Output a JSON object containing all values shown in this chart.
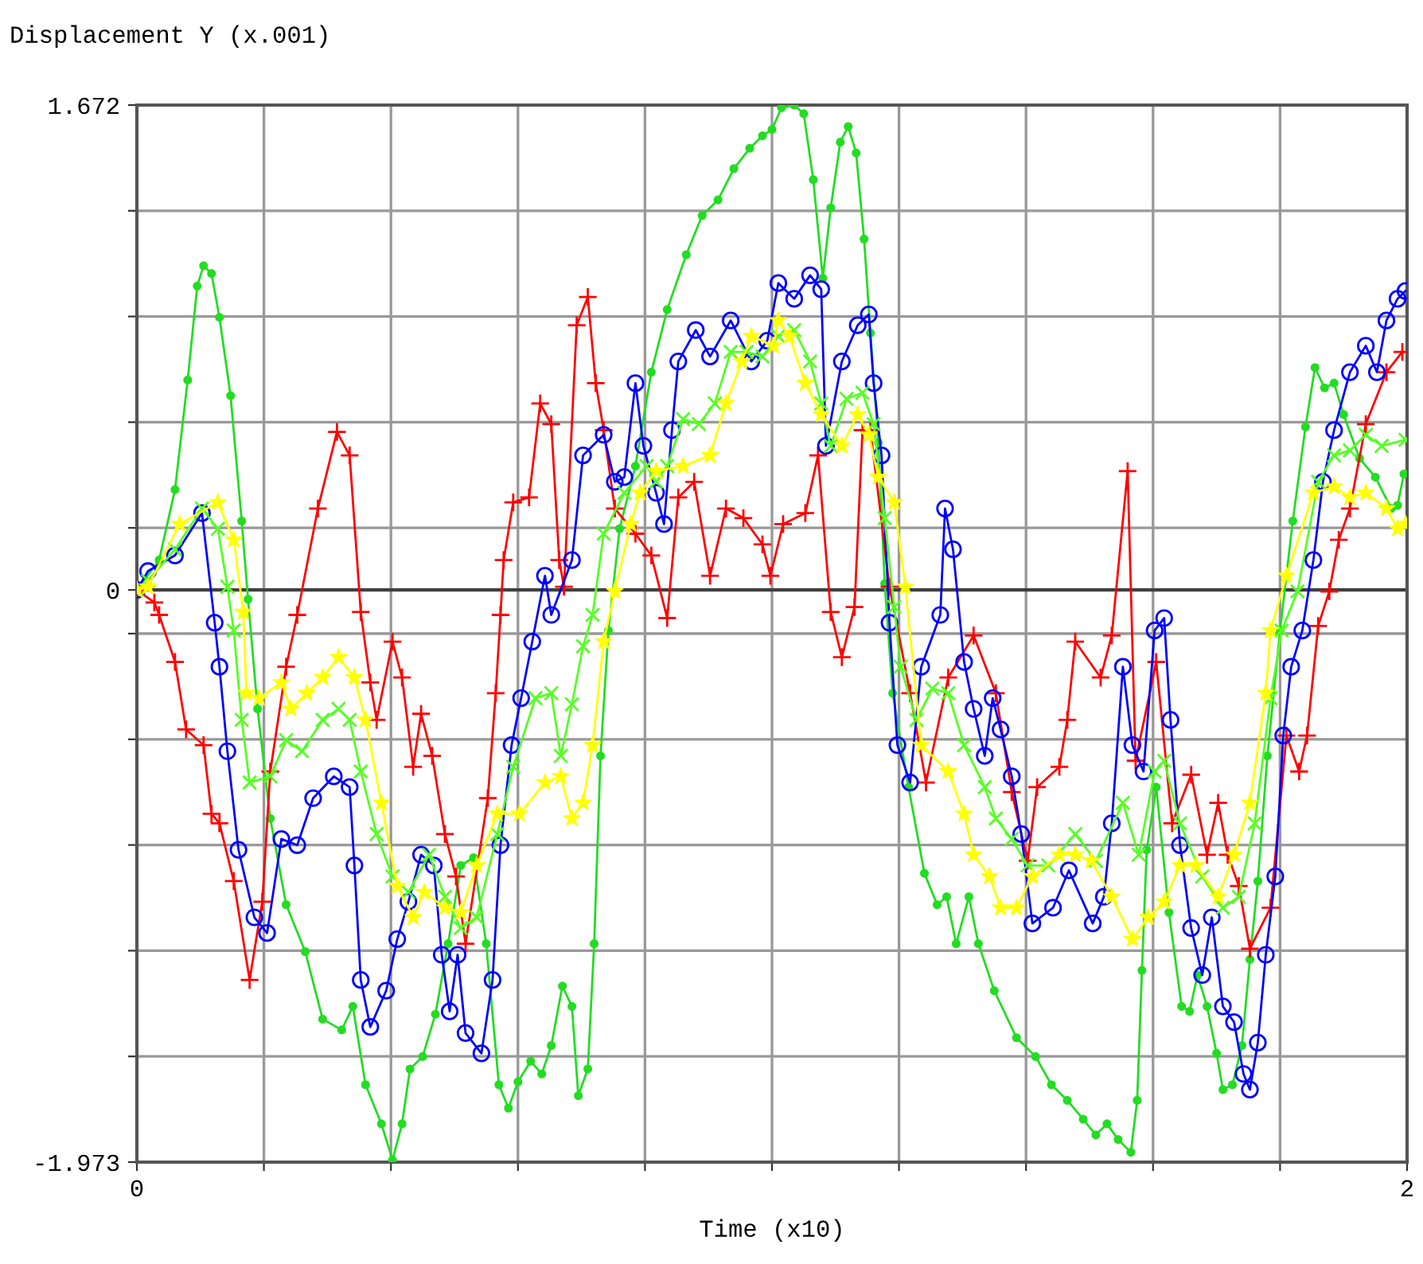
{
  "chart_data": {
    "type": "line",
    "ylabel": "Displacement Y (x.001)",
    "xlabel": "Time (x10)",
    "xlim": [
      0,
      2
    ],
    "ylim": [
      -1.973,
      1.672
    ],
    "xticks": [
      0,
      {
        "value": 0.2,
        "label": null
      },
      {
        "value": 0.4,
        "label": null
      },
      {
        "value": 0.6,
        "label": null
      },
      {
        "value": 0.8,
        "label": null
      },
      {
        "value": 1.0,
        "label": null
      },
      {
        "value": 1.2,
        "label": null
      },
      {
        "value": 1.4,
        "label": null
      },
      {
        "value": 1.6,
        "label": null
      },
      {
        "value": 1.8,
        "label": null
      },
      2
    ],
    "yticks": [
      -1.973,
      {
        "value": -1.6085,
        "label": null
      },
      {
        "value": -1.244,
        "label": null
      },
      {
        "value": -0.8795,
        "label": null
      },
      {
        "value": -0.515,
        "label": null
      },
      {
        "value": -0.1505,
        "label": null
      },
      0,
      {
        "value": 0.214,
        "label": null
      },
      {
        "value": 0.5785,
        "label": null
      },
      {
        "value": 0.943,
        "label": null
      },
      {
        "value": 1.3075,
        "label": null
      },
      1.672
    ],
    "grid": true,
    "line_style": "solid",
    "ref_lines": [
      {
        "axis": "y",
        "value": 0,
        "color": "#404040"
      }
    ],
    "series": [
      {
        "color": "#22dd22",
        "marker": "circle",
        "x": [
          0,
          0.035,
          0.06,
          0.08,
          0.095,
          0.105,
          0.1175,
          0.13,
          0.1475,
          0.165,
          0.175,
          0.19,
          0.21,
          0.235,
          0.265,
          0.2925,
          0.3225,
          0.34,
          0.36,
          0.385,
          0.4025,
          0.4175,
          0.43,
          0.45,
          0.47,
          0.49,
          0.51,
          0.53,
          0.55,
          0.57,
          0.585,
          0.6,
          0.62,
          0.6375,
          0.6525,
          0.67,
          0.685,
          0.695,
          0.71,
          0.72,
          0.73,
          0.7425,
          0.76,
          0.785,
          0.81,
          0.835,
          0.865,
          0.89,
          0.915,
          0.94,
          0.965,
          0.985,
          1.0,
          1.015,
          1.035,
          1.05,
          1.065,
          1.08,
          1.0925,
          1.1075,
          1.12,
          1.1325,
          1.145,
          1.155,
          1.1675,
          1.1775,
          1.19,
          1.215,
          1.24,
          1.26,
          1.275,
          1.29,
          1.31,
          1.325,
          1.35,
          1.385,
          1.415,
          1.44,
          1.465,
          1.49,
          1.51,
          1.5275,
          1.545,
          1.565,
          1.575,
          1.5825,
          1.59,
          1.605,
          1.625,
          1.645,
          1.6575,
          1.67,
          1.685,
          1.7,
          1.71,
          1.725,
          1.74,
          1.7525,
          1.765,
          1.78,
          1.8,
          1.82,
          1.84,
          1.855,
          1.87,
          1.885,
          1.9,
          1.925,
          1.95,
          1.975,
          1.985,
          1.995
        ],
        "values": [
          0,
          0.103,
          0.346,
          0.724,
          1.048,
          1.118,
          1.091,
          0.94,
          0.67,
          0.238,
          -0.032,
          -0.41,
          -0.788,
          -1.085,
          -1.247,
          -1.48,
          -1.517,
          -1.436,
          -1.706,
          -1.841,
          -1.966,
          -1.841,
          -1.652,
          -1.609,
          -1.463,
          -1.22,
          -0.95,
          -0.923,
          -1.22,
          -1.706,
          -1.787,
          -1.696,
          -1.625,
          -1.669,
          -1.571,
          -1.366,
          -1.436,
          -1.744,
          -1.652,
          -1.22,
          -0.572,
          -0.14,
          0.211,
          0.427,
          0.751,
          0.967,
          1.156,
          1.291,
          1.345,
          1.453,
          1.523,
          1.566,
          1.588,
          1.663,
          1.672,
          1.642,
          1.415,
          1.075,
          1.318,
          1.544,
          1.598,
          1.507,
          1.21,
          0.886,
          0.508,
          0.022,
          -0.356,
          -0.68,
          -0.977,
          -1.085,
          -1.058,
          -1.22,
          -1.058,
          -1.22,
          -1.382,
          -1.544,
          -1.609,
          -1.706,
          -1.76,
          -1.825,
          -1.879,
          -1.841,
          -1.895,
          -1.939,
          -1.76,
          -1.312,
          -0.896,
          -0.68,
          -1.112,
          -1.436,
          -1.453,
          -1.328,
          -1.436,
          -1.598,
          -1.723,
          -1.706,
          -1.571,
          -1.274,
          -1.004,
          -0.572,
          -0.14,
          0.238,
          0.562,
          0.767,
          0.697,
          0.713,
          0.605,
          0.454,
          0.389,
          0.281,
          0.292,
          0.4
        ]
      },
      {
        "color": "#ff0000",
        "marker": "cross",
        "x": [
          0,
          0.0275,
          0.035,
          0.06,
          0.0775,
          0.105,
          0.1175,
          0.13,
          0.1525,
          0.1775,
          0.1975,
          0.21,
          0.235,
          0.2525,
          0.285,
          0.315,
          0.335,
          0.3525,
          0.3675,
          0.3775,
          0.4025,
          0.4175,
          0.435,
          0.4475,
          0.465,
          0.485,
          0.5025,
          0.5175,
          0.5525,
          0.565,
          0.5725,
          0.5775,
          0.5925,
          0.6175,
          0.635,
          0.6525,
          0.665,
          0.6725,
          0.6925,
          0.71,
          0.7225,
          0.735,
          0.7525,
          0.785,
          0.81,
          0.835,
          0.8525,
          0.8775,
          0.9025,
          0.9275,
          0.955,
          0.985,
          0.9975,
          1.0175,
          1.0525,
          1.0725,
          1.0925,
          1.11,
          1.13,
          1.1425,
          1.155,
          1.185,
          1.2175,
          1.2425,
          1.2775,
          1.3175,
          1.3525,
          1.3775,
          1.4025,
          1.4175,
          1.4525,
          1.465,
          1.4775,
          1.5175,
          1.535,
          1.56,
          1.5725,
          1.605,
          1.63,
          1.66,
          1.685,
          1.7025,
          1.7175,
          1.735,
          1.7525,
          1.785,
          1.81,
          1.83,
          1.8425,
          1.86,
          1.8775,
          1.8925,
          1.91,
          1.935,
          1.9675,
          1.9925
        ],
        "values": [
          0,
          -0.043,
          -0.086,
          -0.248,
          -0.481,
          -0.535,
          -0.772,
          -0.805,
          -1.004,
          -1.345,
          -1.075,
          -0.626,
          -0.265,
          -0.086,
          0.281,
          0.545,
          0.464,
          -0.076,
          -0.319,
          -0.448,
          -0.178,
          -0.302,
          -0.61,
          -0.427,
          -0.572,
          -0.842,
          -0.988,
          -1.22,
          -0.718,
          -0.356,
          -0.086,
          0.103,
          0.302,
          0.319,
          0.643,
          0.572,
          0.103,
          0.011,
          0.913,
          1.01,
          0.713,
          0.551,
          0.281,
          0.194,
          0.119,
          -0.097,
          0.319,
          0.373,
          0.049,
          0.281,
          0.248,
          0.157,
          0.049,
          0.227,
          0.265,
          0.464,
          -0.076,
          -0.232,
          -0.059,
          0.551,
          0.551,
          0.011,
          -0.356,
          -0.664,
          -0.302,
          -0.157,
          -0.356,
          -0.697,
          -0.934,
          -0.68,
          -0.61,
          -0.448,
          -0.178,
          -0.302,
          -0.157,
          0.41,
          -0.589,
          -0.248,
          -0.805,
          -0.637,
          -0.913,
          -0.734,
          -0.913,
          -1.021,
          -1.237,
          -1.096,
          -0.502,
          -0.626,
          -0.502,
          -0.124,
          -0.005,
          0.173,
          0.281,
          0.572,
          0.751,
          0.821
        ]
      },
      {
        "color": "#0000ff",
        "marker": "circle_open",
        "x": [
          0,
          0.0175,
          0.06,
          0.1025,
          0.1225,
          0.13,
          0.1425,
          0.16,
          0.185,
          0.205,
          0.2275,
          0.2525,
          0.2775,
          0.31,
          0.335,
          0.3425,
          0.3525,
          0.3675,
          0.3925,
          0.41,
          0.4275,
          0.4475,
          0.4675,
          0.48,
          0.4925,
          0.505,
          0.5175,
          0.5425,
          0.56,
          0.5725,
          0.59,
          0.605,
          0.6225,
          0.6425,
          0.6525,
          0.685,
          0.7025,
          0.735,
          0.7525,
          0.7675,
          0.785,
          0.7975,
          0.8175,
          0.83,
          0.8425,
          0.8525,
          0.88,
          0.9025,
          0.935,
          0.9675,
          0.9925,
          1.01,
          1.035,
          1.06,
          1.0775,
          1.085,
          1.11,
          1.135,
          1.1525,
          1.16,
          1.1725,
          1.185,
          1.1975,
          1.2175,
          1.235,
          1.265,
          1.2725,
          1.285,
          1.3025,
          1.3175,
          1.335,
          1.3475,
          1.36,
          1.3775,
          1.3925,
          1.41,
          1.4425,
          1.4675,
          1.505,
          1.5225,
          1.535,
          1.5525,
          1.5675,
          1.585,
          1.6025,
          1.6175,
          1.6275,
          1.6425,
          1.66,
          1.6775,
          1.6925,
          1.71,
          1.7275,
          1.7425,
          1.7525,
          1.765,
          1.7775,
          1.7925,
          1.805,
          1.8175,
          1.835,
          1.8525,
          1.8675,
          1.885,
          1.91,
          1.935,
          1.9525,
          1.9675,
          1.985,
          1.9975
        ],
        "values": [
          0,
          0.065,
          0.119,
          0.265,
          -0.113,
          -0.265,
          -0.556,
          -0.896,
          -1.129,
          -1.183,
          -0.859,
          -0.88,
          -0.718,
          -0.643,
          -0.68,
          -0.95,
          -1.345,
          -1.507,
          -1.382,
          -1.204,
          -1.075,
          -0.913,
          -0.95,
          -1.258,
          -1.453,
          -1.258,
          -1.528,
          -1.598,
          -1.345,
          -0.88,
          -0.535,
          -0.373,
          -0.178,
          0.049,
          -0.086,
          0.103,
          0.464,
          0.535,
          0.373,
          0.389,
          0.713,
          0.497,
          0.335,
          0.227,
          0.551,
          0.788,
          0.896,
          0.805,
          0.929,
          0.788,
          0.859,
          1.058,
          1.004,
          1.085,
          1.037,
          0.497,
          0.788,
          0.913,
          0.95,
          0.713,
          0.464,
          -0.113,
          -0.535,
          -0.664,
          -0.265,
          -0.086,
          0.281,
          0.14,
          -0.248,
          -0.41,
          -0.572,
          -0.373,
          -0.481,
          -0.643,
          -0.842,
          -1.15,
          -1.096,
          -0.967,
          -1.15,
          -1.058,
          -0.805,
          -0.265,
          -0.535,
          -0.626,
          -0.14,
          -0.097,
          -0.448,
          -0.88,
          -1.166,
          -1.328,
          -1.129,
          -1.436,
          -1.49,
          -1.669,
          -1.723,
          -1.561,
          -1.258,
          -0.988,
          -0.502,
          -0.265,
          -0.14,
          0.103,
          0.373,
          0.551,
          0.751,
          0.842,
          0.751,
          0.929,
          1.004,
          1.031
        ]
      },
      {
        "color": "#55ff22",
        "marker": "x",
        "x": [
          0,
          0.0175,
          0.06,
          0.1025,
          0.1275,
          0.1425,
          0.1525,
          0.165,
          0.1775,
          0.21,
          0.235,
          0.26,
          0.2925,
          0.3175,
          0.335,
          0.3525,
          0.3775,
          0.4025,
          0.4275,
          0.46,
          0.485,
          0.51,
          0.535,
          0.5675,
          0.5925,
          0.6275,
          0.6525,
          0.6675,
          0.685,
          0.7025,
          0.7175,
          0.735,
          0.7675,
          0.8025,
          0.8175,
          0.835,
          0.86,
          0.885,
          0.91,
          0.935,
          0.96,
          0.985,
          1.01,
          1.035,
          1.06,
          1.0775,
          1.0925,
          1.1175,
          1.1425,
          1.16,
          1.1775,
          1.1925,
          1.2025,
          1.2275,
          1.2525,
          1.2775,
          1.3025,
          1.335,
          1.3525,
          1.3775,
          1.4025,
          1.435,
          1.4775,
          1.51,
          1.5525,
          1.5775,
          1.6025,
          1.6175,
          1.6425,
          1.6775,
          1.71,
          1.735,
          1.76,
          1.785,
          1.8025,
          1.8275,
          1.86,
          1.885,
          1.91,
          1.935,
          1.96,
          1.9975
        ],
        "values": [
          0,
          0.032,
          0.14,
          0.281,
          0.211,
          0.011,
          -0.14,
          -0.448,
          -0.664,
          -0.643,
          -0.518,
          -0.556,
          -0.448,
          -0.41,
          -0.448,
          -0.626,
          -0.842,
          -0.988,
          -1.042,
          -0.913,
          -1.058,
          -1.166,
          -1.129,
          -0.842,
          -0.61,
          -0.373,
          -0.356,
          -0.572,
          -0.394,
          -0.194,
          -0.086,
          0.194,
          0.335,
          0.427,
          0.373,
          0.427,
          0.589,
          0.572,
          0.643,
          0.821,
          0.821,
          0.805,
          0.875,
          0.896,
          0.788,
          0.643,
          0.497,
          0.659,
          0.68,
          0.572,
          0.248,
          -0.059,
          -0.265,
          -0.448,
          -0.34,
          -0.356,
          -0.535,
          -0.68,
          -0.788,
          -0.859,
          -0.95,
          -0.95,
          -0.842,
          -0.934,
          -0.734,
          -0.913,
          -0.626,
          -0.589,
          -0.805,
          -0.988,
          -1.096,
          -1.058,
          -0.805,
          -0.373,
          -0.14,
          -0.005,
          0.373,
          0.464,
          0.481,
          0.535,
          0.497,
          0.518
        ]
      },
      {
        "color": "#ffff00",
        "marker": "star",
        "x": [
          0,
          0.0175,
          0.0675,
          0.1275,
          0.1525,
          0.1675,
          0.1725,
          0.1925,
          0.2275,
          0.2425,
          0.2675,
          0.2925,
          0.3175,
          0.3425,
          0.36,
          0.385,
          0.41,
          0.435,
          0.4525,
          0.485,
          0.51,
          0.535,
          0.5675,
          0.6025,
          0.6425,
          0.6675,
          0.685,
          0.7025,
          0.7175,
          0.735,
          0.7525,
          0.7775,
          0.7925,
          0.8175,
          0.86,
          0.9025,
          0.9275,
          0.9525,
          0.9675,
          1.0025,
          1.01,
          1.0275,
          1.0525,
          1.0775,
          1.11,
          1.135,
          1.1525,
          1.1675,
          1.1925,
          1.21,
          1.235,
          1.2775,
          1.3025,
          1.3175,
          1.3425,
          1.36,
          1.385,
          1.41,
          1.4525,
          1.4775,
          1.5025,
          1.535,
          1.5675,
          1.5925,
          1.6175,
          1.6425,
          1.6675,
          1.7025,
          1.7275,
          1.7525,
          1.7775,
          1.785,
          1.81,
          1.8525,
          1.885,
          1.91,
          1.935,
          1.9675,
          1.985,
          1.9975
        ],
        "values": [
          0,
          0.011,
          0.227,
          0.302,
          0.173,
          -0.076,
          -0.356,
          -0.373,
          -0.319,
          -0.41,
          -0.356,
          -0.302,
          -0.232,
          -0.302,
          -0.448,
          -0.734,
          -1.021,
          -1.129,
          -1.042,
          -1.096,
          -1.112,
          -0.95,
          -0.772,
          -0.772,
          -0.664,
          -0.643,
          -0.788,
          -0.734,
          -0.535,
          -0.178,
          -0.005,
          0.227,
          0.335,
          0.41,
          0.427,
          0.464,
          0.643,
          0.788,
          0.875,
          0.842,
          0.929,
          0.875,
          0.713,
          0.605,
          0.497,
          0.605,
          0.535,
          0.389,
          0.302,
          0.011,
          -0.535,
          -0.626,
          -0.772,
          -0.913,
          -0.988,
          -1.096,
          -1.096,
          -0.988,
          -0.913,
          -0.913,
          -0.934,
          -1.058,
          -1.204,
          -1.129,
          -1.075,
          -0.95,
          -0.95,
          -1.058,
          -0.913,
          -0.734,
          -0.356,
          -0.14,
          0.049,
          0.335,
          0.356,
          0.319,
          0.335,
          0.281,
          0.211,
          0.227
        ]
      }
    ]
  }
}
